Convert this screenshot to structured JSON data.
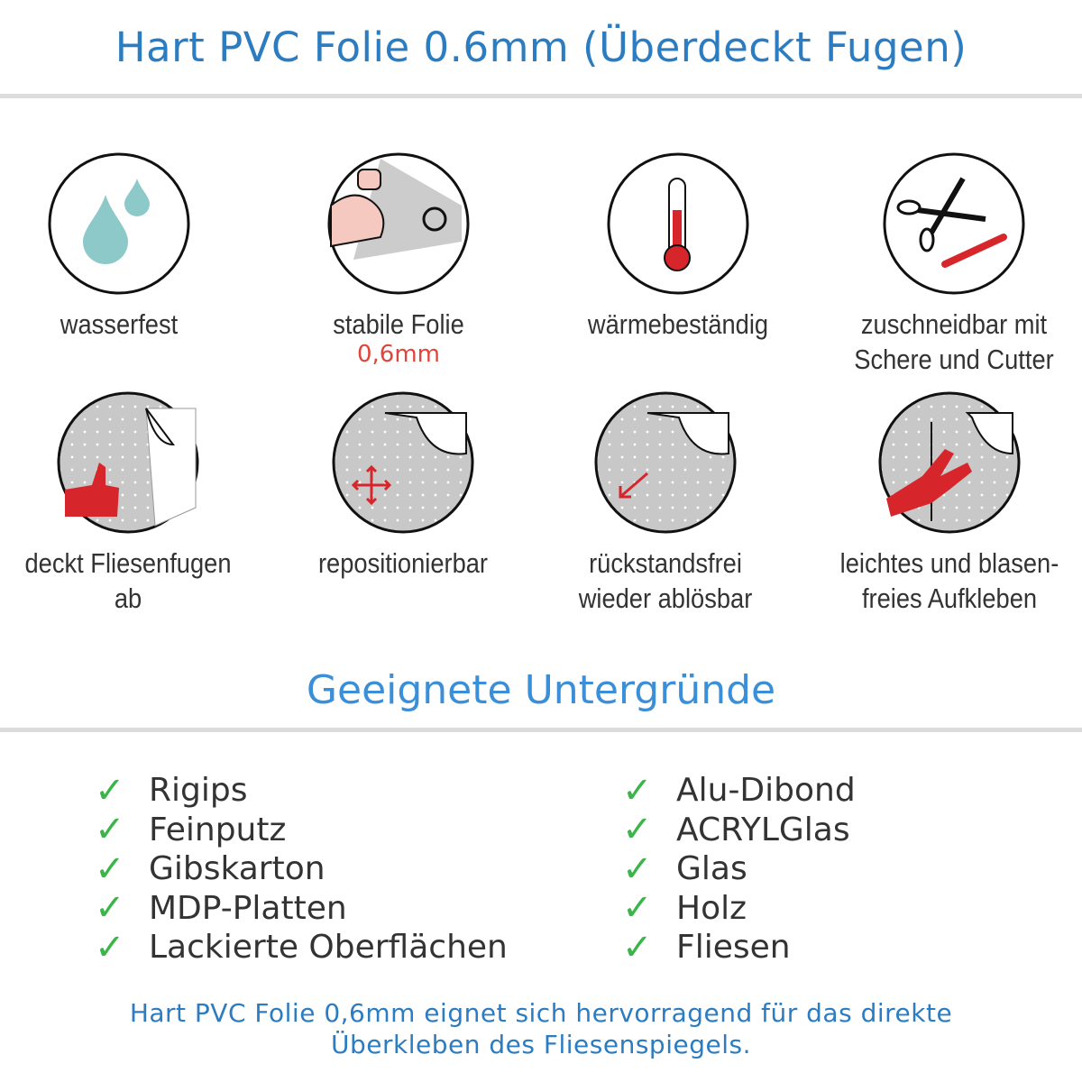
{
  "header": {
    "title": "Hart PVC Folie 0.6mm (Überdeckt Fugen)"
  },
  "features": [
    {
      "icon": "water-drops-icon",
      "lines": [
        "wasserfest"
      ]
    },
    {
      "icon": "strong-arm-icon",
      "lines": [
        "stabile Folie"
      ],
      "sub": "0,6mm"
    },
    {
      "icon": "thermometer-icon",
      "lines": [
        "wärmebeständig"
      ]
    },
    {
      "icon": "scissors-cutter-icon",
      "lines": [
        "zuschneidbar mit",
        "Schere und Cutter"
      ]
    },
    {
      "icon": "thumbs-up-tiles-icon",
      "lines": [
        "deckt Fliesenfugen ab"
      ]
    },
    {
      "icon": "move-arrows-icon",
      "lines": [
        "repositionierbar"
      ]
    },
    {
      "icon": "peel-arrow-icon",
      "lines": [
        "rückstandsfrei",
        "wieder ablösbar"
      ]
    },
    {
      "icon": "hand-smooth-icon",
      "lines": [
        "leichtes und blasen-",
        "freies Aufkleben"
      ]
    }
  ],
  "section": {
    "title": "Geeignete Untergründe"
  },
  "surfaces_left": [
    "Rigips",
    "Feinputz",
    "Gibskarton",
    "MDP-Platten",
    "Lackierte Oberflächen"
  ],
  "surfaces_right": [
    "Alu-Dibond",
    "ACRYLGlas",
    "Glas",
    "Holz",
    "Fliesen"
  ],
  "footer": {
    "lines": [
      "Hart PVC Folie 0,6mm eignet sich hervorragend für das direkte",
      "Überkleben des Fliesenspiegels."
    ]
  },
  "colors": {
    "title": "#2c7cc1",
    "section": "#3a8fd8",
    "check": "#3bb54a",
    "accent_red": "#d7262b",
    "drop": "#8cc9c8"
  }
}
